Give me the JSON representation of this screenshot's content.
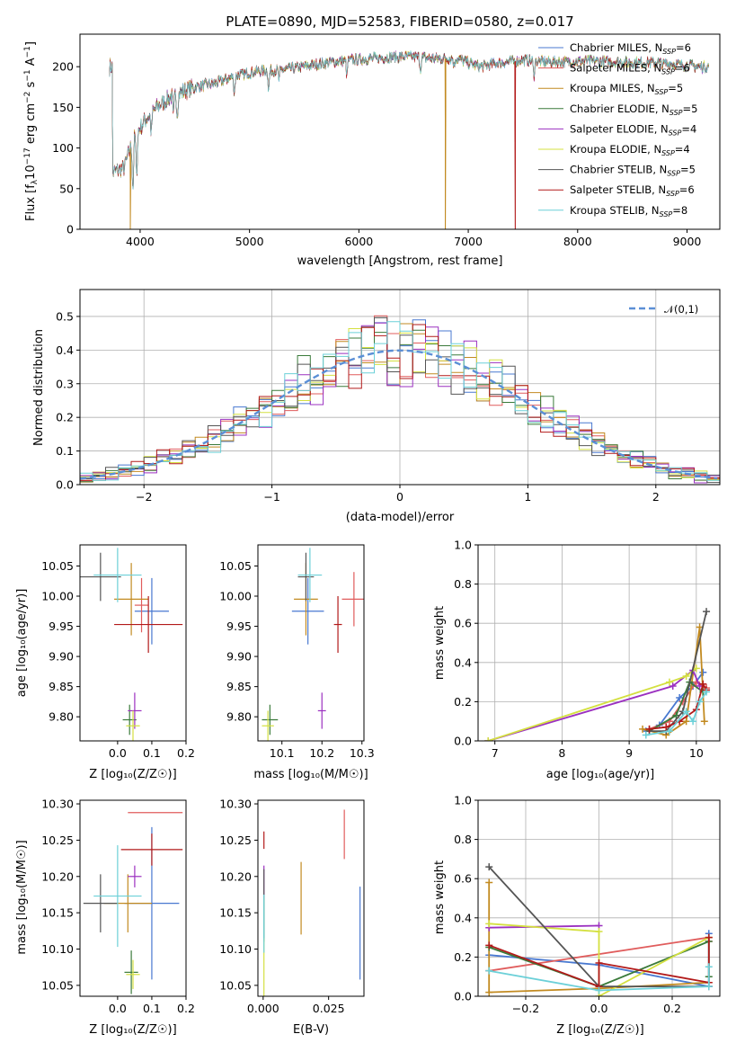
{
  "colors": {
    "cm": "#4878d0",
    "sm": "#e05c5c",
    "km": "#c28a20",
    "ce": "#3a7a3a",
    "se": "#9b30c0",
    "ke": "#d4e040",
    "cs": "#555555",
    "ss": "#b21a1a",
    "ks": "#6cd0d8",
    "ref": "#5b8fd6"
  },
  "chart_data": [
    {
      "id": "spectrum",
      "type": "line",
      "title": "PLATE=0890, MJD=52583, FIBERID=0580, z=0.017",
      "xlabel": "wavelength [Angstrom, rest frame]",
      "ylabel": "Flux [f_λ 10^-17 erg cm^-2 s^-1 A^-1]",
      "xlim": [
        3450,
        9300
      ],
      "ylim": [
        0,
        240
      ],
      "xticks": [
        "4000",
        "5000",
        "6000",
        "7000",
        "8000",
        "9000"
      ],
      "yticks": [
        "0",
        "50",
        "100",
        "150",
        "200"
      ],
      "legend_placement": "top-right",
      "series": [
        {
          "name": "Chabrier MILES, N_SSP=6",
          "color_key": "cm"
        },
        {
          "name": "Salpeter MILES, N_SSP=6",
          "color_key": "sm"
        },
        {
          "name": "Kroupa MILES, N_SSP=5",
          "color_key": "km"
        },
        {
          "name": "Chabrier ELODIE, N_SSP=5",
          "color_key": "ce"
        },
        {
          "name": "Salpeter ELODIE, N_SSP=4",
          "color_key": "se"
        },
        {
          "name": "Kroupa ELODIE, N_SSP=4",
          "color_key": "ke"
        },
        {
          "name": "Chabrier STELIB, N_SSP=5",
          "color_key": "cs"
        },
        {
          "name": "Salpeter STELIB, N_SSP=6",
          "color_key": "ss"
        },
        {
          "name": "Kroupa STELIB, N_SSP=8",
          "color_key": "ks"
        }
      ],
      "continuum_x": [
        3750,
        3850,
        3950,
        4050,
        4150,
        4300,
        4500,
        4700,
        4900,
        5100,
        5300,
        5500,
        5700,
        5900,
        6100,
        6300,
        6500,
        6700,
        6900,
        7100,
        7300,
        7500,
        7700,
        7900,
        8100,
        8300,
        8500,
        8700,
        8900,
        9100
      ],
      "continuum_y": [
        70,
        75,
        115,
        135,
        150,
        165,
        175,
        180,
        190,
        195,
        196,
        200,
        205,
        208,
        210,
        212,
        212,
        210,
        210,
        200,
        205,
        208,
        206,
        206,
        207,
        206,
        205,
        205,
        203,
        200
      ],
      "drops": [
        {
          "x": 3910,
          "color_key": "km"
        },
        {
          "x": 6790,
          "color_key": "km"
        },
        {
          "x": 7430,
          "color_key": "ss"
        }
      ]
    },
    {
      "id": "residuals",
      "type": "step",
      "xlabel": "(data-model)/error",
      "ylabel": "Normed distribution",
      "xlim": [
        -2.5,
        2.5
      ],
      "ylim": [
        0,
        0.58
      ],
      "xticks": [
        "−2",
        "−1",
        "0",
        "1",
        "2"
      ],
      "yticks": [
        "0.0",
        "0.1",
        "0.2",
        "0.3",
        "0.4",
        "0.5"
      ],
      "grid": true,
      "reference": {
        "name": "𝒩(0,1)",
        "color_key": "ref",
        "sigma": 1
      },
      "legend_placement": "top-right"
    },
    {
      "id": "age_vs_Z",
      "type": "errorbar",
      "xlabel": "Z [log₁₀(Z/Z☉)]",
      "ylabel": "age  [log₁₀(age/yr)]",
      "xlim": [
        -0.11,
        0.2
      ],
      "ylim": [
        9.76,
        10.085
      ],
      "xticks": [
        "0.0",
        "0.1",
        "0.2"
      ],
      "yticks": [
        "9.80",
        "9.85",
        "9.90",
        "9.95",
        "10.00",
        "10.05"
      ],
      "points": [
        {
          "c": "cm",
          "x": 0.1,
          "y": 9.975,
          "ex": 0.05,
          "ey": 0.055
        },
        {
          "c": "sm",
          "x": 0.07,
          "y": 9.985,
          "ex": 0.02,
          "ey": 0.045
        },
        {
          "c": "km",
          "x": 0.04,
          "y": 9.995,
          "ex": 0.05,
          "ey": 0.06
        },
        {
          "c": "ce",
          "x": 0.035,
          "y": 9.795,
          "ex": 0.02,
          "ey": 0.025
        },
        {
          "c": "se",
          "x": 0.05,
          "y": 9.81,
          "ex": 0.02,
          "ey": 0.03
        },
        {
          "c": "ke",
          "x": 0.045,
          "y": 9.785,
          "ex": 0.02,
          "ey": 0.025
        },
        {
          "c": "cs",
          "x": -0.05,
          "y": 10.032,
          "ex": 0.06,
          "ey": 0.04
        },
        {
          "c": "ss",
          "x": 0.09,
          "y": 9.953,
          "ex": 0.1,
          "ey": 0.047
        },
        {
          "c": "ks",
          "x": 0.0,
          "y": 10.035,
          "ex": 0.07,
          "ey": 0.045
        }
      ]
    },
    {
      "id": "age_vs_mass",
      "type": "errorbar",
      "xlabel": "mass [log₁₀(M/M☉)]",
      "ylabel": "",
      "xlim": [
        10.04,
        10.305
      ],
      "ylim": [
        9.76,
        10.085
      ],
      "xticks": [
        "10.1",
        "10.2",
        "10.3"
      ],
      "yticks": [
        "9.80",
        "9.85",
        "9.90",
        "9.95",
        "10.00",
        "10.05"
      ],
      "points": [
        {
          "c": "cm",
          "x": 10.165,
          "y": 9.975,
          "ex": 0.04,
          "ey": 0.055
        },
        {
          "c": "sm",
          "x": 10.28,
          "y": 9.995,
          "ex": 0.03,
          "ey": 0.045
        },
        {
          "c": "km",
          "x": 10.16,
          "y": 9.995,
          "ex": 0.03,
          "ey": 0.06
        },
        {
          "c": "ce",
          "x": 10.07,
          "y": 9.795,
          "ex": 0.02,
          "ey": 0.025
        },
        {
          "c": "se",
          "x": 10.2,
          "y": 9.81,
          "ex": 0.01,
          "ey": 0.03
        },
        {
          "c": "ke",
          "x": 10.065,
          "y": 9.785,
          "ex": 0.015,
          "ey": 0.025
        },
        {
          "c": "cs",
          "x": 10.16,
          "y": 10.032,
          "ex": 0.02,
          "ey": 0.04
        },
        {
          "c": "ss",
          "x": 10.24,
          "y": 9.953,
          "ex": 0.01,
          "ey": 0.047
        },
        {
          "c": "ks",
          "x": 10.17,
          "y": 10.035,
          "ex": 0.03,
          "ey": 0.045
        }
      ]
    },
    {
      "id": "weight_vs_age",
      "type": "line",
      "xlabel": "age  [log₁₀(age/yr)]",
      "ylabel": "mass weight",
      "xlim": [
        6.75,
        10.35
      ],
      "ylim": [
        0,
        1
      ],
      "xticks": [
        "7",
        "8",
        "9",
        "10"
      ],
      "yticks": [
        "0.0",
        "0.2",
        "0.4",
        "0.6",
        "0.8",
        "1.0"
      ],
      "grid": true,
      "series": [
        {
          "c": "cm",
          "x": [
            9.25,
            9.45,
            9.75,
            9.95,
            10.1
          ],
          "y": [
            0.05,
            0.08,
            0.22,
            0.28,
            0.35
          ]
        },
        {
          "c": "sm",
          "x": [
            9.3,
            9.6,
            9.8,
            10.0,
            10.15
          ],
          "y": [
            0.06,
            0.1,
            0.2,
            0.3,
            0.27
          ]
        },
        {
          "c": "km",
          "x": [
            9.2,
            9.55,
            9.85,
            10.05,
            10.12
          ],
          "y": [
            0.06,
            0.03,
            0.1,
            0.58,
            0.1
          ]
        },
        {
          "c": "ce",
          "x": [
            9.3,
            9.7,
            9.9,
            10.1
          ],
          "y": [
            0.05,
            0.13,
            0.3,
            0.25
          ]
        },
        {
          "c": "se",
          "x": [
            6.9,
            9.65,
            9.95,
            10.05
          ],
          "y": [
            0.0,
            0.28,
            0.36,
            0.28
          ]
        },
        {
          "c": "ke",
          "x": [
            6.9,
            9.6,
            9.85,
            10.0
          ],
          "y": [
            0.0,
            0.3,
            0.33,
            0.37
          ]
        },
        {
          "c": "cs",
          "x": [
            9.3,
            9.55,
            9.8,
            10.15
          ],
          "y": [
            0.05,
            0.05,
            0.15,
            0.66
          ]
        },
        {
          "c": "ss",
          "x": [
            9.3,
            9.55,
            9.75,
            10.0,
            10.1,
            10.15
          ],
          "y": [
            0.06,
            0.07,
            0.1,
            0.16,
            0.29,
            0.26
          ]
        },
        {
          "c": "ks",
          "x": [
            9.25,
            9.6,
            9.85,
            9.95,
            10.05,
            10.15
          ],
          "y": [
            0.03,
            0.05,
            0.15,
            0.1,
            0.2,
            0.25
          ]
        }
      ]
    },
    {
      "id": "mass_vs_Z",
      "type": "errorbar",
      "xlabel": "Z [log₁₀(Z/Z☉)]",
      "ylabel": "mass [log₁₀(M/M☉)]",
      "xlim": [
        -0.11,
        0.2
      ],
      "ylim": [
        10.035,
        10.305
      ],
      "xticks": [
        "0.0",
        "0.1",
        "0.2"
      ],
      "yticks": [
        "10.05",
        "10.10",
        "10.15",
        "10.20",
        "10.25",
        "10.30"
      ],
      "points": [
        {
          "c": "cm",
          "x": 0.1,
          "y": 10.163,
          "ex": 0.08,
          "ey": 0.105
        },
        {
          "c": "sm",
          "x": 0.11,
          "y": 10.288,
          "ex": 0.08,
          "ey": 0.0
        },
        {
          "c": "km",
          "x": 0.03,
          "y": 10.163,
          "ex": 0.07,
          "ey": 0.04
        },
        {
          "c": "ce",
          "x": 0.04,
          "y": 10.068,
          "ex": 0.02,
          "ey": 0.03
        },
        {
          "c": "se",
          "x": 0.05,
          "y": 10.2,
          "ex": 0.02,
          "ey": 0.015
        },
        {
          "c": "ke",
          "x": 0.045,
          "y": 10.065,
          "ex": 0.02,
          "ey": 0.02
        },
        {
          "c": "cs",
          "x": -0.05,
          "y": 10.163,
          "ex": 0.05,
          "ey": 0.04
        },
        {
          "c": "ss",
          "x": 0.1,
          "y": 10.237,
          "ex": 0.09,
          "ey": 0.022
        },
        {
          "c": "ks",
          "x": 0.0,
          "y": 10.173,
          "ex": 0.07,
          "ey": 0.07
        }
      ]
    },
    {
      "id": "mass_vs_ebv",
      "type": "errorbar",
      "xlabel": "E(B-V)",
      "ylabel": "",
      "xlim": [
        -0.002,
        0.0385
      ],
      "ylim": [
        10.035,
        10.305
      ],
      "xticks": [
        "0.000",
        "0.025"
      ],
      "yticks": [
        "10.05",
        "10.10",
        "10.15",
        "10.20",
        "10.25",
        "10.30"
      ],
      "points": [
        {
          "c": "cm",
          "x": 0.037,
          "y": 10.122,
          "ex": 0,
          "ey": 0.064
        },
        {
          "c": "sm",
          "x": 0.031,
          "y": 10.258,
          "ex": 0,
          "ey": 0.034
        },
        {
          "c": "km",
          "x": 0.0145,
          "y": 10.17,
          "ex": 0,
          "ey": 0.05
        },
        {
          "c": "ce",
          "x": 0.0003,
          "y": 10.14,
          "ex": 0,
          "ey": 0.03
        },
        {
          "c": "se",
          "x": 0.0003,
          "y": 10.195,
          "ex": 0,
          "ey": 0.02
        },
        {
          "c": "ke",
          "x": 0.0003,
          "y": 10.075,
          "ex": 0,
          "ey": 0.04
        },
        {
          "c": "cs",
          "x": 0.0003,
          "y": 10.19,
          "ex": 0,
          "ey": 0.02
        },
        {
          "c": "ss",
          "x": 0.0003,
          "y": 10.25,
          "ex": 0,
          "ey": 0.012
        },
        {
          "c": "ks",
          "x": 0.0003,
          "y": 10.135,
          "ex": 0,
          "ey": 0.04
        }
      ]
    },
    {
      "id": "weight_vs_Z",
      "type": "line",
      "xlabel": "Z [log₁₀(Z/Z☉)]",
      "ylabel": "mass weight",
      "xlim": [
        -0.33,
        0.33
      ],
      "ylim": [
        0,
        1
      ],
      "xticks": [
        "−0.2",
        "0.0",
        "0.2"
      ],
      "yticks": [
        "0.0",
        "0.2",
        "0.4",
        "0.6",
        "0.8",
        "1.0"
      ],
      "grid": true,
      "series": [
        {
          "c": "cm",
          "x": [
            -0.3,
            0.0,
            0.3,
            0.3
          ],
          "y": [
            0.21,
            0.16,
            0.05,
            0.32
          ]
        },
        {
          "c": "sm",
          "x": [
            -0.3,
            0.3,
            0.3
          ],
          "y": [
            0.13,
            0.3,
            0.28
          ]
        },
        {
          "c": "km",
          "x": [
            -0.3,
            -0.3,
            0.0,
            0.3
          ],
          "y": [
            0.58,
            0.02,
            0.04,
            0.07
          ]
        },
        {
          "c": "ce",
          "x": [
            -0.3,
            0.0,
            0.3,
            0.3
          ],
          "y": [
            0.25,
            0.05,
            0.28,
            0.1
          ]
        },
        {
          "c": "se",
          "x": [
            -0.3,
            0.0
          ],
          "y": [
            0.35,
            0.36
          ]
        },
        {
          "c": "ke",
          "x": [
            -0.3,
            0.0,
            0.0,
            0.3
          ],
          "y": [
            0.37,
            0.33,
            0.0,
            0.3
          ]
        },
        {
          "c": "cs",
          "x": [
            -0.3,
            0.0,
            0.3
          ],
          "y": [
            0.66,
            0.05,
            0.05
          ]
        },
        {
          "c": "ss",
          "x": [
            -0.3,
            0.0,
            0.0,
            0.3,
            0.3
          ],
          "y": [
            0.26,
            0.05,
            0.17,
            0.07,
            0.3
          ]
        },
        {
          "c": "ks",
          "x": [
            -0.3,
            0.0,
            0.3,
            0.3
          ],
          "y": [
            0.13,
            0.03,
            0.05,
            0.15
          ]
        }
      ]
    }
  ]
}
